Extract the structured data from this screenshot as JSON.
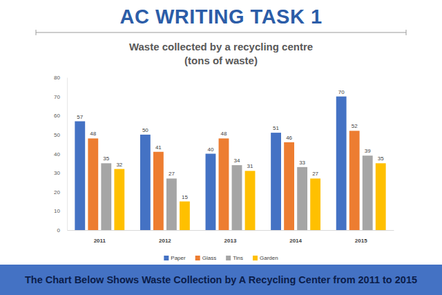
{
  "header": {
    "title": "AC WRITING TASK 1"
  },
  "chart_data": {
    "type": "bar",
    "title": "Waste collected by a recycling centre",
    "subtitle": "(tons of waste)",
    "categories": [
      "2011",
      "2012",
      "2013",
      "2014",
      "2015"
    ],
    "series": [
      {
        "name": "Paper",
        "color": "#4472c4",
        "values": [
          57,
          50,
          40,
          51,
          70
        ]
      },
      {
        "name": "Glass",
        "color": "#ed7d31",
        "values": [
          48,
          41,
          48,
          46,
          52
        ]
      },
      {
        "name": "Tins",
        "color": "#a5a5a5",
        "values": [
          35,
          27,
          34,
          33,
          39
        ]
      },
      {
        "name": "Garden",
        "color": "#ffc000",
        "values": [
          32,
          15,
          31,
          27,
          35
        ]
      }
    ],
    "ylim": [
      0,
      80
    ],
    "yticks": [
      0,
      10,
      20,
      30,
      40,
      50,
      60,
      70,
      80
    ],
    "grid": false,
    "legend": "bottom",
    "data_labels": true
  },
  "footer": {
    "caption": "The Chart Below Shows Waste Collection by A Recycling Center from 2011 to 2015"
  }
}
